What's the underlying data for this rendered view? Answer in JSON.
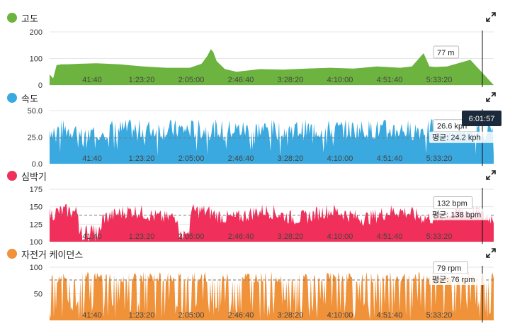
{
  "cursor_time": "6:01:57",
  "x_ticks": [
    "41:40",
    "1:23:20",
    "2:05:00",
    "2:46:40",
    "3:28:20",
    "4:10:00",
    "4:51:40",
    "5:33:20"
  ],
  "panels": [
    {
      "id": "altitude",
      "title": "고도",
      "color": "#6cb33f",
      "icon": "expand-icon",
      "chart_data": {
        "type": "area",
        "title": "고도",
        "y_ticks": [
          "200",
          "100",
          "0"
        ],
        "ylim": [
          0,
          200
        ],
        "series": [
          {
            "x_minutes": [
              0,
              3,
              6,
              10,
              15,
              25,
              40,
              60,
              80,
              100,
              120,
              130,
              135,
              138,
              140,
              143,
              150,
              160,
              170,
              180,
              200,
              220,
              240,
              260,
              280,
              300,
              310,
              320,
              325,
              330,
              340,
              360
            ],
            "values": [
              40,
              25,
              75,
              78,
              78,
              80,
              82,
              78,
              70,
              65,
              65,
              80,
              110,
              135,
              125,
              90,
              60,
              50,
              55,
              60,
              58,
              62,
              65,
              62,
              70,
              65,
              70,
              120,
              70,
              68,
              70,
              95
            ]
          }
        ],
        "current_label": "77 m"
      }
    },
    {
      "id": "speed",
      "title": "속도",
      "color": "#3aa9e0",
      "icon": "expand-icon",
      "chart_data": {
        "type": "area",
        "title": "속도",
        "y_ticks": [
          "50.0",
          "25.0",
          "0.0"
        ],
        "ylim": [
          0,
          50
        ],
        "average": 24.2,
        "current_label": "26.6 kph",
        "average_label": "평균: 24.2 kph"
      }
    },
    {
      "id": "heart_rate",
      "title": "심박기",
      "color": "#f0305a",
      "icon": "expand-icon",
      "chart_data": {
        "type": "area",
        "title": "심박기",
        "y_ticks": [
          "175",
          "150",
          "125",
          "100"
        ],
        "ylim": [
          100,
          175
        ],
        "average": 138,
        "current_label": "132 bpm",
        "average_label": "평균: 138 bpm"
      }
    },
    {
      "id": "cadence",
      "title": "자전거 케이던스",
      "color": "#f0923a",
      "icon": "expand-icon",
      "chart_data": {
        "type": "area",
        "title": "자전거 케이던스",
        "y_ticks": [
          "100",
          "50"
        ],
        "ylim": [
          0,
          100
        ],
        "average": 76,
        "current_label": "79 rpm",
        "average_label": "평균: 76 rpm"
      }
    }
  ]
}
